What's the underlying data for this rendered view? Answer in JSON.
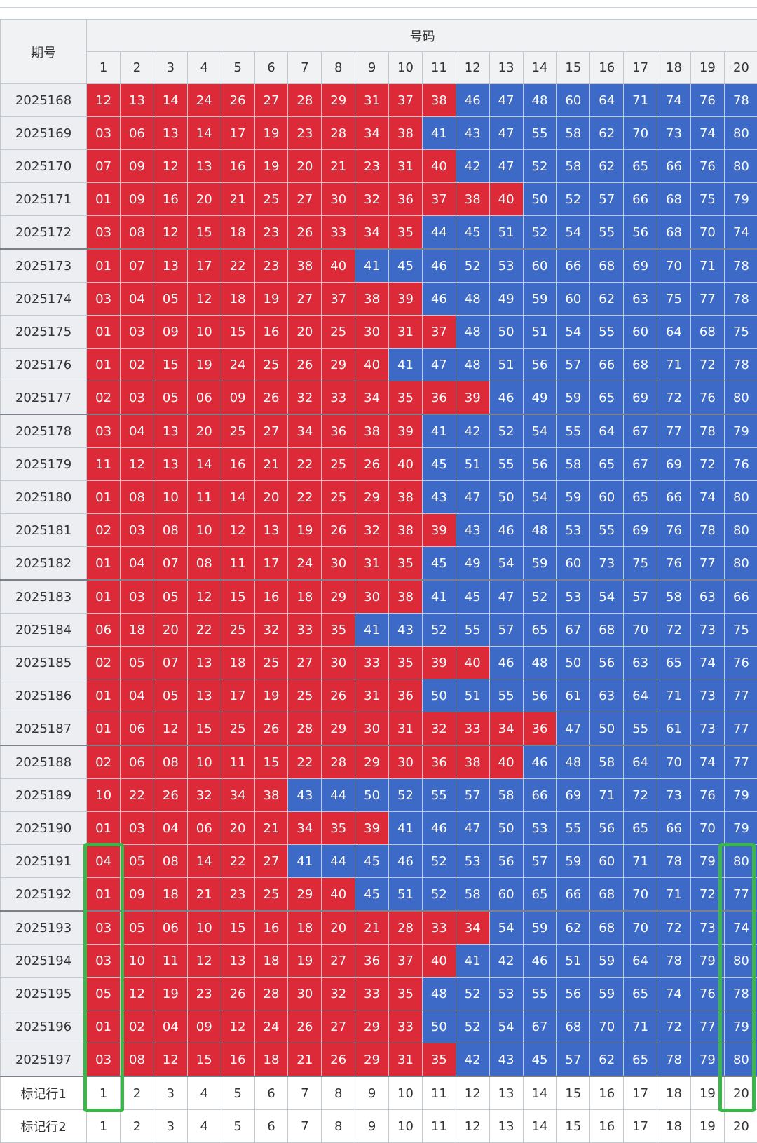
{
  "header": {
    "period_label": "期号",
    "codes_label": "号码",
    "column_numbers": [
      "1",
      "2",
      "3",
      "4",
      "5",
      "6",
      "7",
      "8",
      "9",
      "10",
      "11",
      "12",
      "13",
      "14",
      "15",
      "16",
      "17",
      "18",
      "19",
      "20"
    ]
  },
  "colors": {
    "red": "#dc2a38",
    "blue": "#3d6ac7",
    "highlight": "#3cb54a"
  },
  "rows": [
    {
      "period": "2025168",
      "numbers": [
        "12",
        "13",
        "14",
        "24",
        "26",
        "27",
        "28",
        "29",
        "31",
        "37",
        "38",
        "46",
        "47",
        "48",
        "60",
        "64",
        "71",
        "74",
        "76",
        "78"
      ],
      "red_count": 11
    },
    {
      "period": "2025169",
      "numbers": [
        "03",
        "06",
        "13",
        "14",
        "17",
        "19",
        "23",
        "28",
        "34",
        "38",
        "41",
        "43",
        "47",
        "55",
        "58",
        "62",
        "70",
        "73",
        "74",
        "80"
      ],
      "red_count": 10
    },
    {
      "period": "2025170",
      "numbers": [
        "07",
        "09",
        "12",
        "13",
        "16",
        "19",
        "20",
        "21",
        "23",
        "31",
        "40",
        "42",
        "47",
        "52",
        "58",
        "62",
        "65",
        "66",
        "76",
        "80"
      ],
      "red_count": 11
    },
    {
      "period": "2025171",
      "numbers": [
        "01",
        "09",
        "16",
        "20",
        "21",
        "25",
        "27",
        "30",
        "32",
        "36",
        "37",
        "38",
        "40",
        "50",
        "52",
        "57",
        "66",
        "68",
        "75",
        "79"
      ],
      "red_count": 13
    },
    {
      "period": "2025172",
      "numbers": [
        "03",
        "08",
        "12",
        "15",
        "18",
        "23",
        "26",
        "33",
        "34",
        "35",
        "44",
        "45",
        "51",
        "52",
        "54",
        "55",
        "56",
        "68",
        "70",
        "74"
      ],
      "red_count": 10
    },
    {
      "period": "2025173",
      "numbers": [
        "01",
        "07",
        "13",
        "17",
        "22",
        "23",
        "38",
        "40",
        "41",
        "45",
        "46",
        "52",
        "53",
        "60",
        "66",
        "68",
        "69",
        "70",
        "71",
        "78"
      ],
      "red_count": 8
    },
    {
      "period": "2025174",
      "numbers": [
        "03",
        "04",
        "05",
        "12",
        "18",
        "19",
        "27",
        "37",
        "38",
        "39",
        "46",
        "48",
        "49",
        "59",
        "60",
        "62",
        "63",
        "75",
        "77",
        "78"
      ],
      "red_count": 10
    },
    {
      "period": "2025175",
      "numbers": [
        "01",
        "03",
        "09",
        "10",
        "15",
        "16",
        "20",
        "25",
        "30",
        "31",
        "37",
        "48",
        "50",
        "51",
        "54",
        "55",
        "60",
        "64",
        "68",
        "75"
      ],
      "red_count": 11
    },
    {
      "period": "2025176",
      "numbers": [
        "01",
        "02",
        "15",
        "19",
        "24",
        "25",
        "26",
        "29",
        "40",
        "41",
        "47",
        "48",
        "51",
        "56",
        "57",
        "66",
        "68",
        "71",
        "72",
        "78"
      ],
      "red_count": 9
    },
    {
      "period": "2025177",
      "numbers": [
        "02",
        "03",
        "05",
        "06",
        "09",
        "26",
        "32",
        "33",
        "34",
        "35",
        "36",
        "39",
        "46",
        "49",
        "59",
        "65",
        "69",
        "72",
        "76",
        "80"
      ],
      "red_count": 12
    },
    {
      "period": "2025178",
      "numbers": [
        "03",
        "04",
        "13",
        "20",
        "25",
        "27",
        "34",
        "36",
        "38",
        "39",
        "41",
        "42",
        "52",
        "54",
        "55",
        "64",
        "67",
        "77",
        "78",
        "79"
      ],
      "red_count": 10
    },
    {
      "period": "2025179",
      "numbers": [
        "11",
        "12",
        "13",
        "14",
        "16",
        "21",
        "22",
        "25",
        "26",
        "40",
        "45",
        "51",
        "55",
        "56",
        "58",
        "65",
        "67",
        "69",
        "72",
        "76"
      ],
      "red_count": 10
    },
    {
      "period": "2025180",
      "numbers": [
        "01",
        "08",
        "10",
        "11",
        "14",
        "20",
        "22",
        "25",
        "29",
        "38",
        "43",
        "47",
        "50",
        "54",
        "59",
        "60",
        "65",
        "66",
        "74",
        "80"
      ],
      "red_count": 10
    },
    {
      "period": "2025181",
      "numbers": [
        "02",
        "03",
        "08",
        "10",
        "12",
        "13",
        "19",
        "26",
        "32",
        "38",
        "39",
        "43",
        "46",
        "48",
        "53",
        "55",
        "69",
        "76",
        "78",
        "80"
      ],
      "red_count": 11
    },
    {
      "period": "2025182",
      "numbers": [
        "01",
        "04",
        "07",
        "08",
        "11",
        "17",
        "24",
        "30",
        "31",
        "35",
        "45",
        "49",
        "54",
        "59",
        "60",
        "73",
        "75",
        "76",
        "77",
        "80"
      ],
      "red_count": 10
    },
    {
      "period": "2025183",
      "numbers": [
        "01",
        "03",
        "05",
        "12",
        "15",
        "16",
        "18",
        "29",
        "30",
        "38",
        "41",
        "45",
        "47",
        "52",
        "53",
        "54",
        "57",
        "58",
        "63",
        "66"
      ],
      "red_count": 10
    },
    {
      "period": "2025184",
      "numbers": [
        "06",
        "18",
        "20",
        "22",
        "25",
        "32",
        "33",
        "35",
        "41",
        "43",
        "52",
        "55",
        "57",
        "65",
        "67",
        "68",
        "70",
        "72",
        "73",
        "75"
      ],
      "red_count": 8
    },
    {
      "period": "2025185",
      "numbers": [
        "02",
        "05",
        "07",
        "13",
        "18",
        "25",
        "27",
        "30",
        "33",
        "35",
        "39",
        "40",
        "46",
        "48",
        "50",
        "56",
        "63",
        "65",
        "74",
        "76"
      ],
      "red_count": 12
    },
    {
      "period": "2025186",
      "numbers": [
        "01",
        "04",
        "05",
        "13",
        "17",
        "19",
        "25",
        "26",
        "31",
        "36",
        "50",
        "51",
        "55",
        "56",
        "61",
        "63",
        "64",
        "71",
        "73",
        "77"
      ],
      "red_count": 10
    },
    {
      "period": "2025187",
      "numbers": [
        "01",
        "06",
        "12",
        "15",
        "25",
        "26",
        "28",
        "29",
        "30",
        "31",
        "32",
        "33",
        "34",
        "36",
        "47",
        "50",
        "55",
        "61",
        "73",
        "77"
      ],
      "red_count": 14
    },
    {
      "period": "2025188",
      "numbers": [
        "02",
        "06",
        "08",
        "10",
        "11",
        "15",
        "22",
        "28",
        "29",
        "30",
        "36",
        "38",
        "40",
        "46",
        "48",
        "58",
        "64",
        "70",
        "74",
        "77"
      ],
      "red_count": 13
    },
    {
      "period": "2025189",
      "numbers": [
        "10",
        "22",
        "26",
        "32",
        "34",
        "38",
        "43",
        "44",
        "50",
        "52",
        "55",
        "57",
        "58",
        "66",
        "69",
        "71",
        "72",
        "73",
        "76",
        "79"
      ],
      "red_count": 6
    },
    {
      "period": "2025190",
      "numbers": [
        "01",
        "03",
        "04",
        "06",
        "20",
        "21",
        "34",
        "35",
        "39",
        "41",
        "46",
        "47",
        "50",
        "53",
        "55",
        "56",
        "65",
        "66",
        "70",
        "79"
      ],
      "red_count": 9
    },
    {
      "period": "2025191",
      "numbers": [
        "04",
        "05",
        "08",
        "14",
        "22",
        "27",
        "41",
        "44",
        "45",
        "46",
        "52",
        "53",
        "56",
        "57",
        "59",
        "60",
        "71",
        "78",
        "79",
        "80"
      ],
      "red_count": 6
    },
    {
      "period": "2025192",
      "numbers": [
        "01",
        "09",
        "18",
        "21",
        "23",
        "25",
        "29",
        "40",
        "45",
        "51",
        "52",
        "58",
        "60",
        "65",
        "66",
        "68",
        "70",
        "71",
        "72",
        "77"
      ],
      "red_count": 8
    },
    {
      "period": "2025193",
      "numbers": [
        "03",
        "05",
        "06",
        "10",
        "15",
        "16",
        "18",
        "20",
        "21",
        "28",
        "33",
        "34",
        "54",
        "59",
        "62",
        "68",
        "70",
        "72",
        "73",
        "74"
      ],
      "red_count": 12
    },
    {
      "period": "2025194",
      "numbers": [
        "03",
        "10",
        "11",
        "12",
        "13",
        "18",
        "19",
        "27",
        "36",
        "37",
        "40",
        "41",
        "42",
        "46",
        "51",
        "59",
        "64",
        "78",
        "79",
        "80"
      ],
      "red_count": 11
    },
    {
      "period": "2025195",
      "numbers": [
        "05",
        "12",
        "19",
        "23",
        "26",
        "28",
        "30",
        "32",
        "33",
        "35",
        "48",
        "52",
        "53",
        "55",
        "56",
        "59",
        "65",
        "74",
        "76",
        "78"
      ],
      "red_count": 10
    },
    {
      "period": "2025196",
      "numbers": [
        "01",
        "02",
        "04",
        "09",
        "12",
        "24",
        "26",
        "27",
        "29",
        "33",
        "50",
        "52",
        "54",
        "67",
        "68",
        "70",
        "71",
        "72",
        "77",
        "79"
      ],
      "red_count": 10
    },
    {
      "period": "2025197",
      "numbers": [
        "03",
        "08",
        "12",
        "15",
        "16",
        "18",
        "21",
        "26",
        "29",
        "31",
        "35",
        "42",
        "43",
        "45",
        "57",
        "62",
        "65",
        "78",
        "79",
        "80"
      ],
      "red_count": 11
    }
  ],
  "mark_rows": [
    {
      "label": "标记行1",
      "values": [
        "1",
        "2",
        "3",
        "4",
        "5",
        "6",
        "7",
        "8",
        "9",
        "10",
        "11",
        "12",
        "13",
        "14",
        "15",
        "16",
        "17",
        "18",
        "19",
        "20"
      ]
    },
    {
      "label": "标记行2",
      "values": [
        "1",
        "2",
        "3",
        "4",
        "5",
        "6",
        "7",
        "8",
        "9",
        "10",
        "11",
        "12",
        "13",
        "14",
        "15",
        "16",
        "17",
        "18",
        "19",
        "20"
      ]
    }
  ]
}
